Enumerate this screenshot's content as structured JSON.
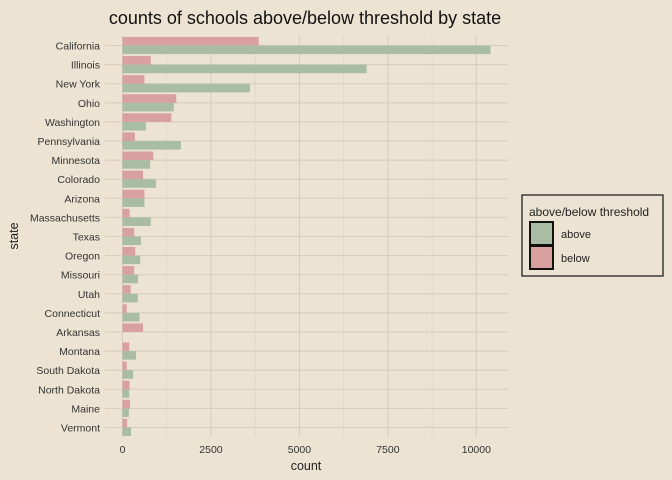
{
  "chart_data": {
    "type": "bar",
    "orientation": "horizontal",
    "title": "counts of schools above/below threshold by state",
    "xlabel": "count",
    "ylabel": "state",
    "xlim": [
      0,
      10500
    ],
    "xticks": [
      0,
      2500,
      5000,
      7500,
      10000
    ],
    "xtick_labels": [
      "0",
      "2500",
      "5000",
      "7500",
      "10000"
    ],
    "categories": [
      "California",
      "Illinois",
      "New York",
      "Ohio",
      "Washington",
      "Pennsylvania",
      "Minnesota",
      "Colorado",
      "Arizona",
      "Massachusetts",
      "Texas",
      "Oregon",
      "Missouri",
      "Utah",
      "Connecticut",
      "Arkansas",
      "Montana",
      "South Dakota",
      "North Dakota",
      "Maine",
      "Vermont"
    ],
    "series": [
      {
        "name": "above",
        "color": "#a8bda3",
        "values": [
          10400,
          6900,
          3600,
          1450,
          660,
          1650,
          780,
          950,
          620,
          800,
          520,
          500,
          440,
          430,
          480,
          0,
          380,
          300,
          190,
          180,
          240
        ]
      },
      {
        "name": "below",
        "color": "#d9a0a0",
        "values": [
          3850,
          800,
          620,
          1520,
          1380,
          350,
          870,
          580,
          620,
          200,
          330,
          360,
          330,
          230,
          120,
          580,
          190,
          120,
          200,
          210,
          130
        ]
      }
    ],
    "legend": {
      "title": "above/below threshold",
      "position": "right",
      "entries": [
        "above",
        "below"
      ]
    },
    "grid": true
  }
}
